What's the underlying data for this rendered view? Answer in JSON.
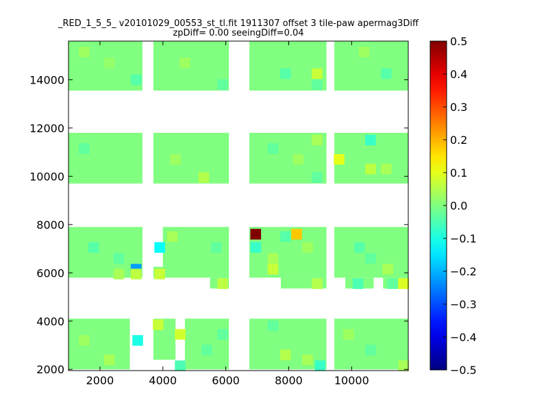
{
  "chart_data": {
    "type": "heatmap",
    "title": "_RED_1_5_5_ v20101029_00553_st_tl.fit 1911307 offset 3 tile-paw apermag3Diff",
    "subtitle": "zpDiff= 0.00 seeingDiff=0.04",
    "xlabel": "",
    "ylabel": "",
    "xlim": [
      1000,
      11800
    ],
    "ylim": [
      1950,
      15600
    ],
    "xticks": [
      "2000",
      "4000",
      "6000",
      "8000",
      "10000"
    ],
    "yticks": [
      "2000",
      "4000",
      "6000",
      "8000",
      "10000",
      "12000",
      "14000"
    ],
    "colorbar": {
      "colormap": "jet",
      "range": [
        -0.5,
        0.5
      ],
      "ticks": [
        "0.5",
        "0.4",
        "0.3",
        "0.2",
        "0.1",
        "0.0",
        "−0.1",
        "−0.2",
        "−0.3",
        "−0.4",
        "−0.5"
      ]
    },
    "grid": false,
    "base_value": 0.0,
    "cell_size_approx": [
      340,
      440
    ],
    "regions": [
      {
        "x": [
          1000,
          3350
        ],
        "y": [
          13550,
          15600
        ]
      },
      {
        "x": [
          3700,
          6100
        ],
        "y": [
          13550,
          15600
        ]
      },
      {
        "x": [
          6750,
          9200
        ],
        "y": [
          13550,
          15600
        ]
      },
      {
        "x": [
          9450,
          11800
        ],
        "y": [
          13550,
          15600
        ]
      },
      {
        "x": [
          1000,
          3350
        ],
        "y": [
          9700,
          11800
        ]
      },
      {
        "x": [
          3700,
          6100
        ],
        "y": [
          9700,
          11800
        ]
      },
      {
        "x": [
          6750,
          9200
        ],
        "y": [
          9700,
          11800
        ]
      },
      {
        "x": [
          9450,
          11800
        ],
        "y": [
          9700,
          11800
        ]
      },
      {
        "x": [
          1000,
          3350
        ],
        "y": [
          5800,
          7900
        ]
      },
      {
        "x": [
          4000,
          6100
        ],
        "y": [
          5800,
          7900
        ]
      },
      {
        "x": [
          5500,
          6100
        ],
        "y": [
          5350,
          5800
        ]
      },
      {
        "x": [
          3700,
          4050
        ],
        "y": [
          5800,
          6250
        ]
      },
      {
        "x": [
          6750,
          9200
        ],
        "y": [
          5800,
          7900
        ]
      },
      {
        "x": [
          7750,
          9200
        ],
        "y": [
          5350,
          5800
        ]
      },
      {
        "x": [
          9450,
          11800
        ],
        "y": [
          5800,
          7900
        ]
      },
      {
        "x": [
          9800,
          10700
        ],
        "y": [
          5350,
          5800
        ]
      },
      {
        "x": [
          11000,
          11800
        ],
        "y": [
          5350,
          5800
        ]
      },
      {
        "x": [
          1000,
          2950
        ],
        "y": [
          2000,
          4100
        ]
      },
      {
        "x": [
          3700,
          4400
        ],
        "y": [
          2400,
          4100
        ]
      },
      {
        "x": [
          4700,
          6100
        ],
        "y": [
          2000,
          4100
        ]
      },
      {
        "x": [
          6750,
          9200
        ],
        "y": [
          2000,
          4100
        ]
      },
      {
        "x": [
          9450,
          11800
        ],
        "y": [
          2000,
          4100
        ]
      }
    ],
    "values": [
      {
        "x": 1500,
        "y": 15150,
        "value": 0.03
      },
      {
        "x": 2300,
        "y": 14700,
        "value": 0.02
      },
      {
        "x": 3150,
        "y": 14000,
        "value": -0.04
      },
      {
        "x": 4700,
        "y": 14700,
        "value": 0.03
      },
      {
        "x": 5900,
        "y": 13800,
        "value": -0.03
      },
      {
        "x": 7900,
        "y": 14250,
        "value": -0.04
      },
      {
        "x": 8900,
        "y": 14250,
        "value": 0.07
      },
      {
        "x": 8900,
        "y": 13800,
        "value": -0.03
      },
      {
        "x": 10400,
        "y": 15150,
        "value": 0.03
      },
      {
        "x": 11100,
        "y": 14250,
        "value": -0.04
      },
      {
        "x": 1500,
        "y": 11150,
        "value": -0.03
      },
      {
        "x": 4400,
        "y": 10700,
        "value": 0.03
      },
      {
        "x": 5300,
        "y": 9950,
        "value": 0.05
      },
      {
        "x": 7500,
        "y": 11150,
        "value": -0.03
      },
      {
        "x": 8300,
        "y": 10700,
        "value": 0.03
      },
      {
        "x": 8900,
        "y": 11500,
        "value": 0.04
      },
      {
        "x": 8900,
        "y": 9950,
        "value": -0.03
      },
      {
        "x": 9600,
        "y": 10700,
        "value": 0.1
      },
      {
        "x": 10600,
        "y": 11500,
        "value": -0.07
      },
      {
        "x": 10600,
        "y": 10300,
        "value": 0.06
      },
      {
        "x": 11100,
        "y": 10300,
        "value": 0.04
      },
      {
        "x": 1800,
        "y": 7050,
        "value": -0.04
      },
      {
        "x": 2600,
        "y": 6600,
        "value": -0.03
      },
      {
        "x": 3150,
        "y": 6150,
        "value": -0.22
      },
      {
        "x": 3150,
        "y": 5950,
        "value": 0.06
      },
      {
        "x": 2600,
        "y": 5950,
        "value": 0.04
      },
      {
        "x": 3900,
        "y": 7050,
        "value": -0.12
      },
      {
        "x": 3900,
        "y": 5950,
        "value": 0.07
      },
      {
        "x": 4300,
        "y": 7500,
        "value": 0.04
      },
      {
        "x": 5700,
        "y": 7050,
        "value": -0.03
      },
      {
        "x": 5900,
        "y": 5550,
        "value": 0.06
      },
      {
        "x": 6950,
        "y": 7600,
        "value": 0.5
      },
      {
        "x": 6950,
        "y": 7050,
        "value": -0.07
      },
      {
        "x": 7500,
        "y": 6600,
        "value": 0.04
      },
      {
        "x": 7500,
        "y": 6150,
        "value": 0.07
      },
      {
        "x": 7900,
        "y": 7500,
        "value": -0.04
      },
      {
        "x": 8250,
        "y": 7600,
        "value": 0.18
      },
      {
        "x": 8600,
        "y": 7050,
        "value": 0.03
      },
      {
        "x": 8900,
        "y": 5550,
        "value": 0.05
      },
      {
        "x": 10250,
        "y": 7050,
        "value": -0.04
      },
      {
        "x": 10600,
        "y": 6600,
        "value": -0.03
      },
      {
        "x": 11150,
        "y": 6150,
        "value": 0.04
      },
      {
        "x": 10200,
        "y": 5550,
        "value": -0.05
      },
      {
        "x": 11300,
        "y": 5550,
        "value": -0.03
      },
      {
        "x": 11650,
        "y": 5550,
        "value": 0.09
      },
      {
        "x": 1500,
        "y": 3200,
        "value": 0.03
      },
      {
        "x": 2300,
        "y": 2400,
        "value": 0.04
      },
      {
        "x": 3200,
        "y": 3200,
        "value": -0.1
      },
      {
        "x": 3850,
        "y": 3850,
        "value": 0.07
      },
      {
        "x": 4550,
        "y": 3450,
        "value": 0.08
      },
      {
        "x": 4550,
        "y": 2150,
        "value": -0.05
      },
      {
        "x": 5400,
        "y": 2800,
        "value": -0.03
      },
      {
        "x": 5900,
        "y": 3450,
        "value": -0.03
      },
      {
        "x": 7500,
        "y": 3800,
        "value": -0.03
      },
      {
        "x": 7900,
        "y": 2600,
        "value": 0.05
      },
      {
        "x": 8600,
        "y": 2400,
        "value": 0.04
      },
      {
        "x": 9000,
        "y": 2150,
        "value": -0.07
      },
      {
        "x": 9900,
        "y": 3450,
        "value": 0.03
      },
      {
        "x": 10600,
        "y": 2800,
        "value": -0.03
      },
      {
        "x": 11650,
        "y": 2150,
        "value": 0.04
      }
    ]
  }
}
